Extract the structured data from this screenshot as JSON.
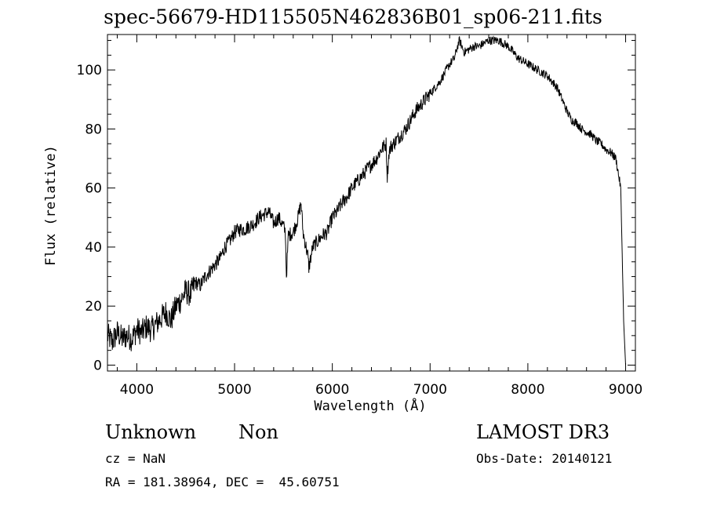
{
  "chart_data": {
    "type": "line",
    "title": "spec-56679-HD115505N462836B01_sp06-211.fits",
    "xlabel": "Wavelength (Å)",
    "ylabel": "Flux (relative)",
    "xlim": [
      3700,
      9100
    ],
    "ylim": [
      -2,
      112
    ],
    "xticks": [
      4000,
      5000,
      6000,
      7000,
      8000,
      9000
    ],
    "yticks": [
      0,
      20,
      40,
      60,
      80,
      100
    ],
    "grid": false,
    "line_color": "#000000",
    "series": [
      {
        "x": [
          3700,
          3750,
          3800,
          3850,
          3900,
          3950,
          4000,
          4050,
          4100,
          4150,
          4200,
          4250,
          4300,
          4350,
          4400,
          4450,
          4500,
          4550,
          4600,
          4650,
          4700,
          4750,
          4800,
          4850,
          4900,
          4950,
          5000,
          5050,
          5100,
          5150,
          5200,
          5250,
          5300,
          5350,
          5400,
          5450,
          5500,
          5520,
          5530,
          5550,
          5600,
          5650,
          5680,
          5700,
          5750,
          5760,
          5800,
          5850,
          5900,
          5950,
          6000,
          6050,
          6100,
          6150,
          6200,
          6250,
          6300,
          6350,
          6400,
          6450,
          6500,
          6550,
          6562,
          6580,
          6600,
          6650,
          6700,
          6750,
          6800,
          6850,
          6900,
          6950,
          7000,
          7050,
          7100,
          7150,
          7200,
          7250,
          7280,
          7300,
          7350,
          7400,
          7450,
          7500,
          7550,
          7600,
          7650,
          7700,
          7750,
          7800,
          7850,
          7900,
          7950,
          8000,
          8050,
          8100,
          8150,
          8200,
          8250,
          8300,
          8350,
          8400,
          8450,
          8500,
          8550,
          8600,
          8650,
          8700,
          8750,
          8800,
          8850,
          8900,
          8950,
          8980,
          9000
        ],
        "y": [
          10,
          8,
          11,
          9,
          10,
          9,
          12,
          11,
          13,
          12,
          14,
          16,
          18,
          15,
          20,
          22,
          25,
          24,
          28,
          27,
          30,
          32,
          34,
          36,
          40,
          42,
          45,
          46,
          46,
          47,
          48,
          50,
          51,
          52,
          48,
          50,
          47,
          45,
          30,
          44,
          45,
          50,
          55,
          45,
          37,
          33,
          40,
          42,
          44,
          45,
          50,
          52,
          55,
          57,
          60,
          62,
          64,
          66,
          68,
          70,
          73,
          75,
          64,
          72,
          74,
          76,
          78,
          80,
          83,
          86,
          88,
          90,
          92,
          94,
          96,
          99,
          102,
          104,
          108,
          110,
          106,
          107,
          108,
          108,
          109,
          110,
          110,
          110,
          109,
          108,
          106,
          104,
          103,
          102,
          101,
          100,
          99,
          98,
          96,
          94,
          90,
          86,
          83,
          82,
          80,
          79,
          78,
          76,
          75,
          73,
          72,
          70,
          60,
          15,
          0
        ]
      }
    ],
    "annotations": {
      "object_type": "Unknown",
      "object_class": "Non",
      "survey": "LAMOST DR3",
      "cz": "cz = NaN",
      "obs_date": "Obs-Date: 20140121",
      "coords": "RA = 181.38964, DEC =  45.60751"
    }
  }
}
